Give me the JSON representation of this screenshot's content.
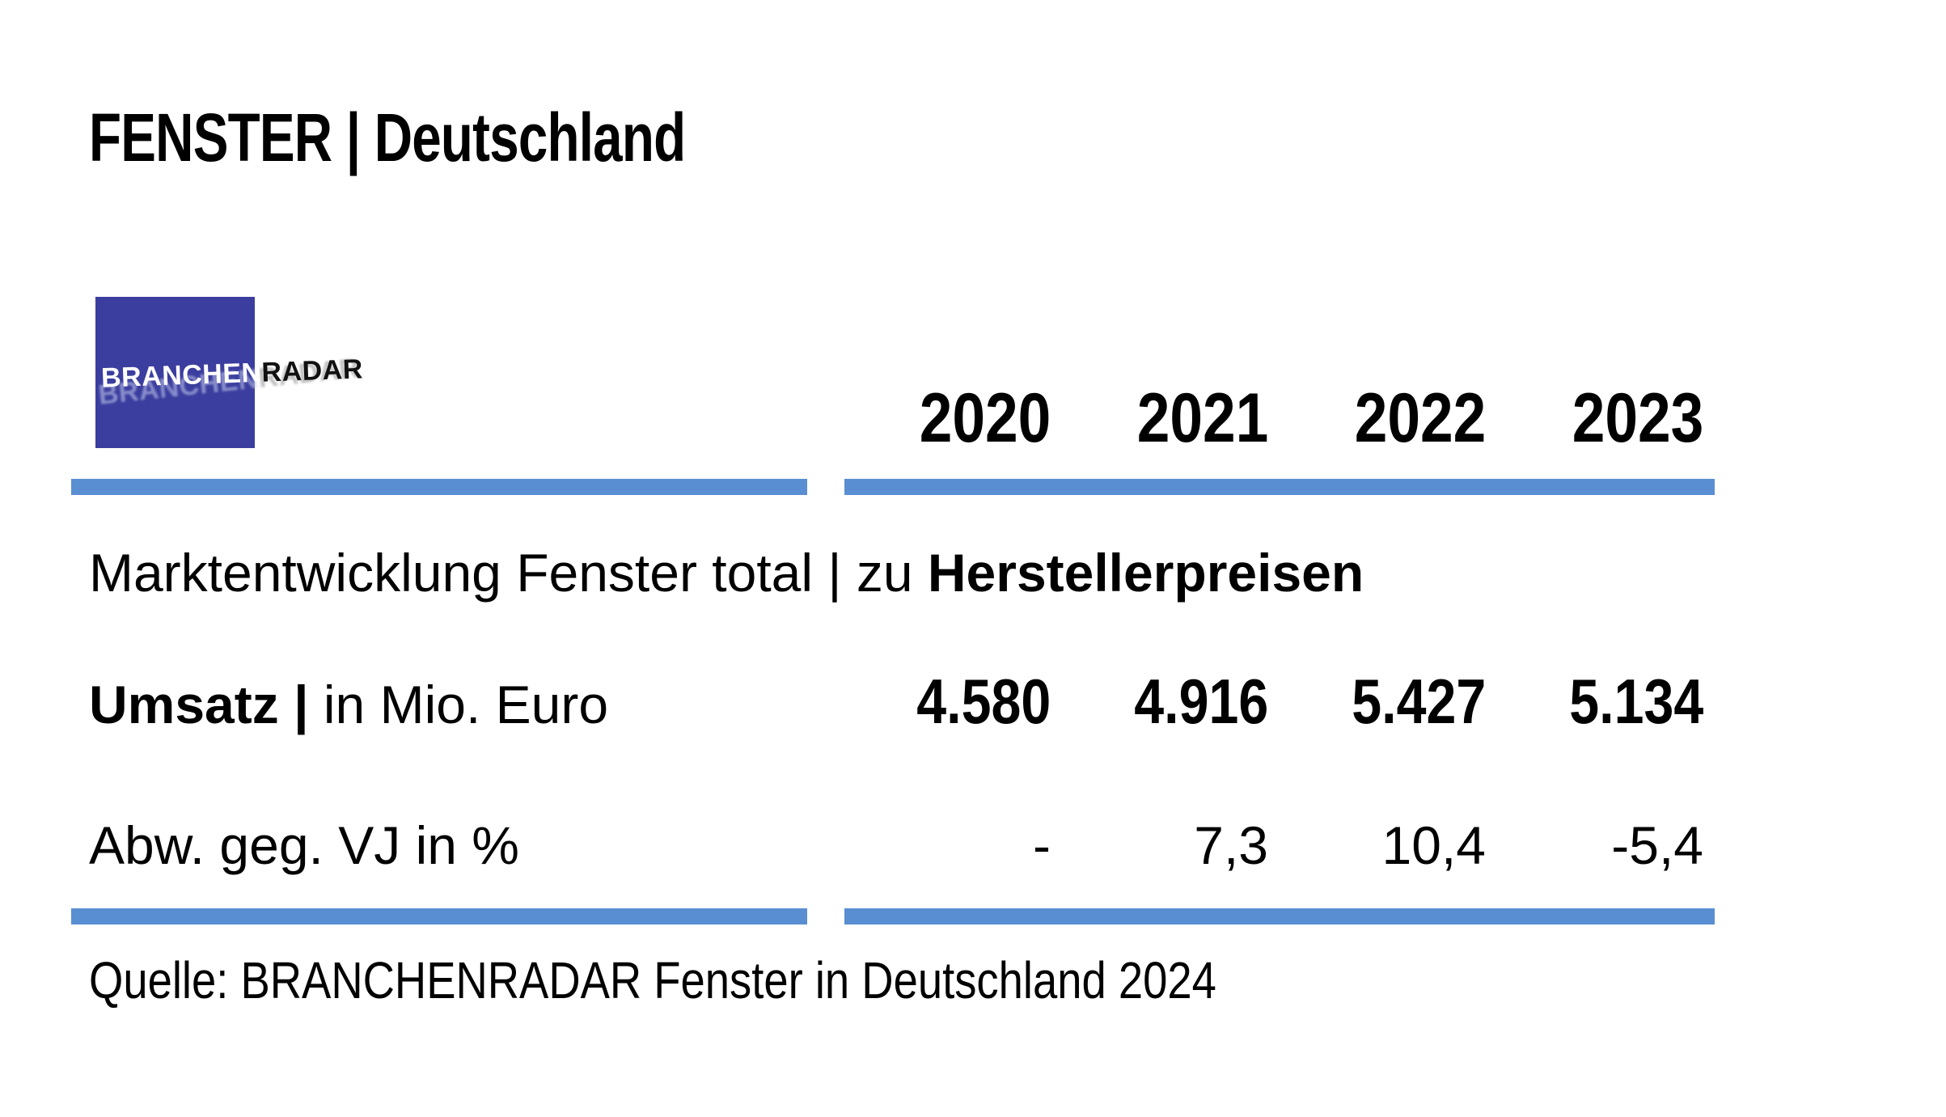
{
  "page": {
    "title": "FENSTER | Deutschland"
  },
  "logo": {
    "text_primary": "BRANCHEN",
    "text_secondary": "RADAR",
    "square_color": "#3b3e9e"
  },
  "colors": {
    "rule_blue": "#5a8ed2",
    "text": "#000000",
    "background": "#ffffff"
  },
  "table": {
    "years": [
      "2020",
      "2021",
      "2022",
      "2023"
    ],
    "section_title": {
      "regular": "Marktentwicklung Fenster total | zu ",
      "bold": "Herstellerpreisen"
    },
    "rows": [
      {
        "label_bold": "Umsatz |",
        "label_regular": " in Mio. Euro",
        "values": [
          "4.580",
          "4.916",
          "5.427",
          "5.134"
        ]
      },
      {
        "label_bold": "",
        "label_regular": "Abw. geg. VJ in %",
        "values": [
          "-",
          "7,3",
          "10,4",
          "-5,4"
        ]
      }
    ]
  },
  "source": "Quelle: BRANCHENRADAR Fenster in Deutschland 2024",
  "chart_data": {
    "type": "table",
    "title": "Marktentwicklung Fenster total | zu Herstellerpreisen",
    "region_header": "FENSTER | Deutschland",
    "categories": [
      "2020",
      "2021",
      "2022",
      "2023"
    ],
    "series": [
      {
        "name": "Umsatz | in Mio. Euro",
        "values": [
          4580,
          4916,
          5427,
          5134
        ]
      },
      {
        "name": "Abw. geg. VJ in %",
        "values": [
          null,
          7.3,
          10.4,
          -5.4
        ]
      }
    ],
    "source": "Quelle: BRANCHENRADAR Fenster in Deutschland 2024"
  }
}
